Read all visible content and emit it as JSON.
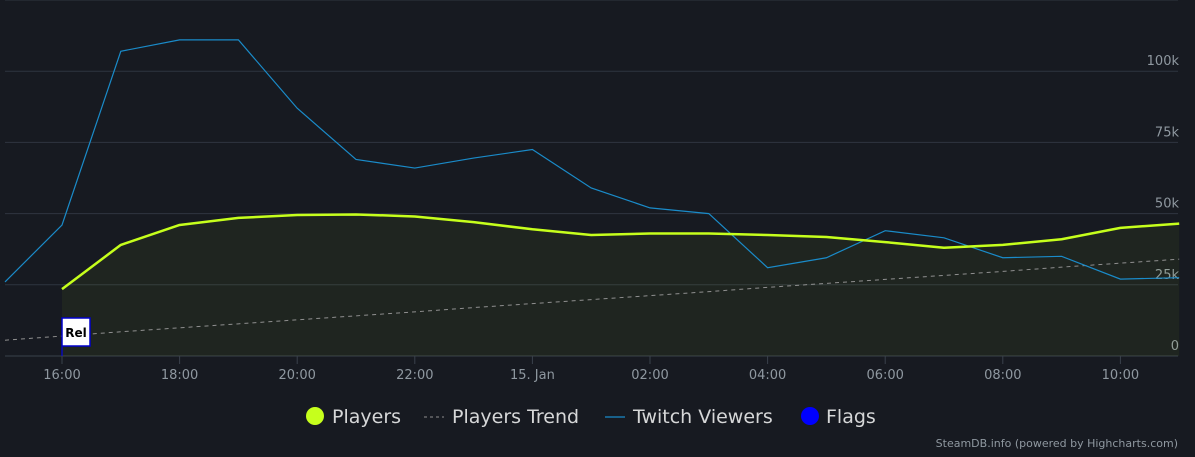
{
  "chart_data": {
    "type": "line",
    "x": [
      "16:00",
      "17:00",
      "18:00",
      "19:00",
      "20:00",
      "21:00",
      "22:00",
      "23:00",
      "15. Jan",
      "01:00",
      "02:00",
      "03:00",
      "04:00",
      "05:00",
      "06:00",
      "07:00",
      "08:00",
      "09:00",
      "10:00",
      "11:00"
    ],
    "x_ticks": [
      "16:00",
      "18:00",
      "20:00",
      "22:00",
      "15. Jan",
      "02:00",
      "04:00",
      "06:00",
      "08:00",
      "10:00"
    ],
    "y_ticks": [
      "0",
      "25k",
      "50k",
      "75k",
      "100k"
    ],
    "ylim": [
      0,
      125000
    ],
    "grid": true,
    "legend_position": "bottom",
    "series": [
      {
        "name": "Players",
        "color": "#c6ff1c",
        "values": [
          23500,
          39000,
          46000,
          48500,
          49500,
          49700,
          49000,
          47000,
          44500,
          42500,
          43000,
          43000,
          42500,
          41800,
          40000,
          38000,
          39000,
          41000,
          45000,
          46500
        ]
      },
      {
        "name": "Players Trend",
        "color": "#8f8f8f",
        "dashed": true,
        "values": [
          7000,
          8500,
          9900,
          11300,
          12700,
          14100,
          15500,
          17000,
          18400,
          19800,
          21200,
          22600,
          24100,
          25500,
          26900,
          28300,
          29700,
          31200,
          32600,
          34000
        ]
      },
      {
        "name": "Twitch Viewers",
        "color": "#1a8bc9",
        "values": [
          46000,
          107000,
          111000,
          111000,
          87000,
          69000,
          66000,
          69500,
          72500,
          59000,
          52000,
          50000,
          31000,
          34500,
          44000,
          41500,
          34500,
          35000,
          27000,
          27500
        ]
      },
      {
        "name": "Flags",
        "color": "#0000ff"
      }
    ],
    "leading_twitch_value": 26000,
    "flags": [
      {
        "x": "16:00",
        "label": "Rel"
      }
    ]
  },
  "credit": "SteamDB.info (powered by Highcharts.com)"
}
